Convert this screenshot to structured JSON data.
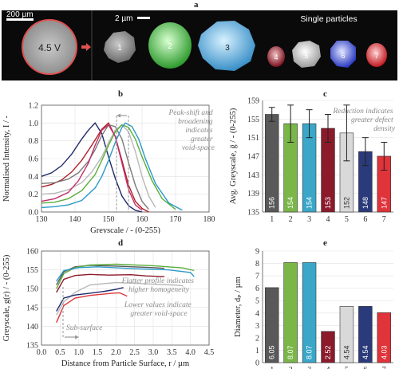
{
  "panels": {
    "a": {
      "letter": "a",
      "scale_left": "200 µm",
      "voltage": "4.5 V",
      "scale_right": "2 µm",
      "single_label": "Single particles",
      "particles": [
        "1",
        "2",
        "3",
        "4",
        "5",
        "6",
        "7"
      ]
    },
    "b": {
      "letter": "b",
      "annotation": [
        "Peak-shift and",
        "broadening",
        "indicates",
        "greater",
        "void-space"
      ]
    },
    "c": {
      "letter": "c",
      "annotation": [
        "Reduction indicates",
        "greater defect",
        "density"
      ]
    },
    "d": {
      "letter": "d",
      "annotation1": [
        "Flatter profile indicates",
        "higher homogeneity"
      ],
      "annotation2": [
        "Lower values indicate",
        "greater void-space"
      ],
      "annotation3": "Sub-surface"
    },
    "e": {
      "letter": "e"
    }
  },
  "chart_data": [
    {
      "id": "b",
      "type": "line",
      "xlabel": "Greyscale / - (0-255)",
      "ylabel": "Normalised Intensity, I / -",
      "xlim": [
        130,
        180
      ],
      "ylim": [
        0,
        1.2
      ],
      "xticks": [
        130,
        140,
        150,
        160,
        170,
        180
      ],
      "yticks": [
        0,
        0.2,
        0.4,
        0.6,
        0.8,
        1.0,
        1.2
      ],
      "series": [
        {
          "color": "#1f2a6b",
          "x": [
            130,
            133,
            136,
            139,
            142,
            144,
            146,
            148,
            150,
            152,
            154,
            156,
            158,
            160
          ],
          "y": [
            0.4,
            0.44,
            0.52,
            0.65,
            0.82,
            0.92,
            1.0,
            0.88,
            0.62,
            0.38,
            0.18,
            0.07,
            0.02,
            0.0
          ]
        },
        {
          "color": "#b0202a",
          "x": [
            130,
            133,
            136,
            139,
            142,
            145,
            148,
            150,
            152,
            154,
            156,
            158,
            160,
            162
          ],
          "y": [
            0.28,
            0.31,
            0.36,
            0.45,
            0.58,
            0.75,
            0.93,
            1.0,
            0.85,
            0.58,
            0.3,
            0.12,
            0.04,
            0.0
          ]
        },
        {
          "color": "#7a7a7a",
          "x": [
            130,
            134,
            138,
            141,
            144,
            146,
            148,
            150,
            152,
            154,
            156,
            158,
            160,
            162
          ],
          "y": [
            0.32,
            0.33,
            0.37,
            0.44,
            0.57,
            0.7,
            0.86,
            0.98,
            0.96,
            0.82,
            0.55,
            0.3,
            0.12,
            0.03
          ]
        },
        {
          "color": "#b8b8b8",
          "x": [
            130,
            134,
            138,
            142,
            145,
            148,
            150,
            152,
            154,
            156,
            158,
            160,
            162,
            164
          ],
          "y": [
            0.2,
            0.21,
            0.25,
            0.33,
            0.45,
            0.62,
            0.78,
            0.92,
            0.98,
            0.9,
            0.68,
            0.4,
            0.18,
            0.05
          ]
        },
        {
          "color": "#5aae3b",
          "x": [
            130,
            134,
            138,
            142,
            146,
            148,
            150,
            152,
            154,
            156,
            158,
            160,
            163,
            166,
            170
          ],
          "y": [
            0.1,
            0.11,
            0.15,
            0.24,
            0.42,
            0.58,
            0.75,
            0.9,
            0.98,
            0.95,
            0.82,
            0.62,
            0.35,
            0.15,
            0.03
          ]
        },
        {
          "color": "#2b9ac8",
          "x": [
            130,
            134,
            138,
            142,
            146,
            148,
            150,
            152,
            154,
            155,
            157,
            159,
            161,
            164,
            168,
            172
          ],
          "y": [
            0.05,
            0.06,
            0.08,
            0.13,
            0.27,
            0.4,
            0.58,
            0.78,
            0.95,
            1.0,
            0.96,
            0.82,
            0.6,
            0.32,
            0.1,
            0.02
          ]
        },
        {
          "color": "#c0306a",
          "x": [
            130,
            134,
            138,
            141,
            144,
            146,
            148,
            150,
            152,
            154,
            156,
            158,
            160
          ],
          "y": [
            0.12,
            0.15,
            0.22,
            0.35,
            0.55,
            0.75,
            0.92,
            0.98,
            0.85,
            0.55,
            0.25,
            0.08,
            0.02
          ]
        }
      ]
    },
    {
      "id": "c",
      "type": "bar",
      "ylabel": "Avg. Greyscale, ḡ / - (0-255)",
      "categories": [
        "1",
        "2",
        "3",
        "4",
        "5",
        "6",
        "7"
      ],
      "values": [
        156,
        154,
        154,
        153,
        152,
        148,
        147
      ],
      "errors": [
        1.5,
        4,
        3,
        3,
        6,
        3,
        3
      ],
      "colors": [
        "#595959",
        "#7ab648",
        "#3aa7c9",
        "#8b1a2b",
        "#d9d9d9",
        "#2a3a7a",
        "#e0333a"
      ],
      "ylim": [
        135,
        159
      ],
      "yticks": [
        135,
        139,
        143,
        147,
        151,
        155,
        159
      ]
    },
    {
      "id": "d",
      "type": "line",
      "xlabel": "Distance from Particle Surface, r / µm",
      "ylabel": "Greyscale, g(r) / - (0-255)",
      "xlim": [
        0,
        4.5
      ],
      "ylim": [
        135,
        160
      ],
      "xticks": [
        0,
        0.5,
        1.0,
        1.5,
        2.0,
        2.5,
        3.0,
        3.5,
        4.0,
        4.5
      ],
      "yticks": [
        135,
        140,
        145,
        150,
        155,
        160
      ],
      "series": [
        {
          "color": "#595959",
          "x": [
            0.4,
            0.6,
            0.9,
            1.3,
            2.0,
            3.0,
            3.3
          ],
          "y": [
            151,
            154.5,
            155.8,
            156.2,
            156.0,
            155.6,
            155.4
          ]
        },
        {
          "color": "#5aae3b",
          "x": [
            0.4,
            0.6,
            0.9,
            1.3,
            2.0,
            3.0,
            3.8,
            4.1
          ],
          "y": [
            150,
            154,
            155.6,
            156.3,
            156.5,
            156.1,
            155.5,
            154.8
          ]
        },
        {
          "color": "#2b9ac8",
          "x": [
            0.4,
            0.6,
            1.0,
            1.5,
            2.5,
            3.4,
            4.0,
            4.1
          ],
          "y": [
            152,
            154.8,
            155.6,
            155.8,
            155.3,
            155.0,
            154.3,
            153.2
          ]
        },
        {
          "color": "#8b1a2b",
          "x": [
            0.4,
            0.6,
            0.9,
            1.3,
            1.8,
            2.4,
            2.8,
            3.3
          ],
          "y": [
            149,
            152.5,
            153.5,
            153.8,
            153.6,
            153.7,
            153.4,
            153.2
          ]
        },
        {
          "color": "#b8b8b8",
          "x": [
            0.4,
            0.6,
            0.9,
            1.3,
            2.0,
            2.8,
            3.5,
            3.8
          ],
          "y": [
            143,
            146.5,
            149,
            151,
            151.6,
            151.3,
            151.0,
            150.8
          ]
        },
        {
          "color": "#1f2a6b",
          "x": [
            0.4,
            0.6,
            0.9,
            1.3,
            1.7,
            2.0,
            2.2
          ],
          "y": [
            144,
            147.5,
            148.3,
            148.8,
            149.3,
            149.8,
            150.3
          ]
        },
        {
          "color": "#e0333a",
          "x": [
            0.4,
            0.6,
            0.9,
            1.3,
            1.6,
            1.9,
            2.1,
            2.3
          ],
          "y": [
            141,
            145.5,
            147.5,
            148.2,
            148.5,
            148.8,
            148.9,
            148.0
          ]
        }
      ]
    },
    {
      "id": "e",
      "type": "bar",
      "ylabel": "Diameter, dₚ / µm",
      "categories": [
        "1",
        "2",
        "3",
        "4",
        "5",
        "6",
        "7"
      ],
      "values": [
        6.05,
        8.07,
        8.07,
        2.52,
        4.54,
        4.54,
        4.03
      ],
      "labels": [
        "6.05",
        "8.07",
        "8.07",
        "2.52",
        "4.54",
        "4.54",
        "4.03"
      ],
      "colors": [
        "#595959",
        "#7ab648",
        "#3aa7c9",
        "#8b1a2b",
        "#d9d9d9",
        "#2a3a7a",
        "#e0333a"
      ],
      "ylim": [
        0,
        9
      ],
      "yticks": [
        0,
        1,
        2,
        3,
        4,
        5,
        6,
        7,
        8,
        9
      ]
    }
  ]
}
